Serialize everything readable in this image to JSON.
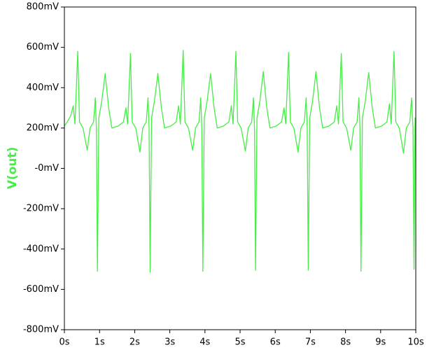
{
  "chart_data": {
    "type": "line",
    "ylabel": "V(out)",
    "xlim": [
      0,
      10
    ],
    "ylim": [
      -800,
      800
    ],
    "xticks": [
      {
        "value": 0,
        "label": "0s"
      },
      {
        "value": 1,
        "label": "1s"
      },
      {
        "value": 2,
        "label": "2s"
      },
      {
        "value": 3,
        "label": "3s"
      },
      {
        "value": 4,
        "label": "4s"
      },
      {
        "value": 5,
        "label": "5s"
      },
      {
        "value": 6,
        "label": "6s"
      },
      {
        "value": 7,
        "label": "7s"
      },
      {
        "value": 8,
        "label": "8s"
      },
      {
        "value": 9,
        "label": "9s"
      },
      {
        "value": 10,
        "label": "10s"
      }
    ],
    "yticks": [
      {
        "value": 800,
        "label": "800mV"
      },
      {
        "value": 600,
        "label": "600mV"
      },
      {
        "value": 400,
        "label": "400mV"
      },
      {
        "value": 200,
        "label": "200mV"
      },
      {
        "value": 0,
        "label": "-0mV"
      },
      {
        "value": -200,
        "label": "-200mV"
      },
      {
        "value": -400,
        "label": "-400mV"
      },
      {
        "value": -600,
        "label": "-600mV"
      },
      {
        "value": -800,
        "label": "-800mV"
      }
    ],
    "series": [
      {
        "name": "V(out)",
        "color": "#44ee44",
        "x": [
          0,
          0.08,
          0.18,
          0.25,
          0.3,
          0.38,
          0.43,
          0.53,
          0.65,
          0.73,
          0.83,
          0.88,
          0.91,
          0.94,
          0.98,
          1.06,
          1.16,
          1.26,
          1.35,
          1.53,
          1.68,
          1.75,
          1.8,
          1.88,
          1.93,
          2.03,
          2.15,
          2.23,
          2.33,
          2.38,
          2.41,
          2.44,
          2.48,
          2.56,
          2.66,
          2.76,
          2.85,
          3.03,
          3.18,
          3.25,
          3.3,
          3.38,
          3.43,
          3.53,
          3.65,
          3.73,
          3.83,
          3.88,
          3.91,
          3.94,
          3.98,
          4.06,
          4.16,
          4.26,
          4.35,
          4.53,
          4.68,
          4.75,
          4.8,
          4.88,
          4.93,
          5.03,
          5.15,
          5.23,
          5.33,
          5.38,
          5.41,
          5.44,
          5.48,
          5.56,
          5.66,
          5.76,
          5.85,
          6.03,
          6.18,
          6.25,
          6.3,
          6.38,
          6.43,
          6.53,
          6.65,
          6.73,
          6.83,
          6.88,
          6.91,
          6.94,
          6.98,
          7.06,
          7.16,
          7.26,
          7.35,
          7.53,
          7.68,
          7.75,
          7.8,
          7.88,
          7.93,
          8.03,
          8.15,
          8.23,
          8.33,
          8.38,
          8.41,
          8.44,
          8.48,
          8.56,
          8.66,
          8.76,
          8.85,
          9.03,
          9.18,
          9.25,
          9.3,
          9.38,
          9.43,
          9.53,
          9.65,
          9.73,
          9.83,
          9.88,
          9.92,
          9.95,
          9.98,
          10
        ],
        "values": [
          210,
          230,
          260,
          310,
          220,
          580,
          230,
          200,
          90,
          200,
          230,
          350,
          200,
          -510,
          250,
          330,
          470,
          300,
          200,
          210,
          230,
          300,
          220,
          570,
          230,
          200,
          80,
          200,
          230,
          350,
          200,
          -515,
          250,
          330,
          470,
          300,
          200,
          210,
          230,
          310,
          220,
          585,
          230,
          200,
          90,
          200,
          230,
          350,
          200,
          -510,
          250,
          330,
          470,
          300,
          200,
          210,
          230,
          310,
          220,
          580,
          230,
          200,
          85,
          200,
          230,
          350,
          200,
          -505,
          250,
          330,
          480,
          300,
          200,
          210,
          230,
          300,
          220,
          575,
          230,
          200,
          80,
          200,
          230,
          350,
          200,
          -505,
          250,
          330,
          480,
          300,
          200,
          210,
          230,
          310,
          220,
          570,
          230,
          200,
          90,
          200,
          230,
          350,
          200,
          -510,
          250,
          330,
          475,
          300,
          200,
          210,
          230,
          320,
          220,
          580,
          230,
          200,
          75,
          200,
          230,
          350,
          200,
          -500,
          250,
          240
        ]
      }
    ]
  }
}
